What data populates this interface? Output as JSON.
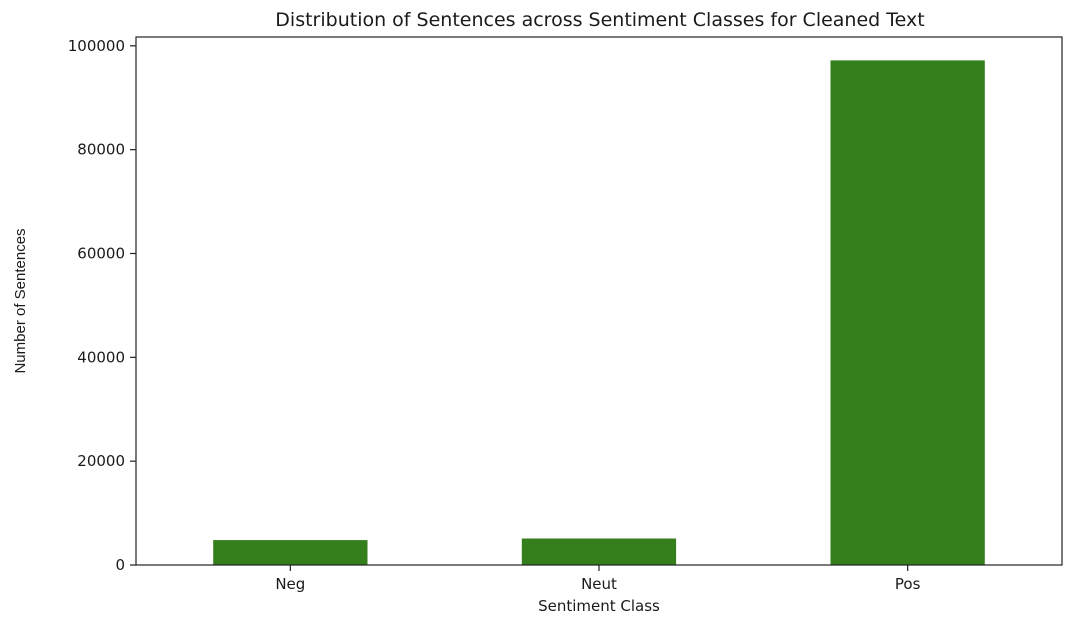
{
  "chart_data": {
    "type": "bar",
    "title": "Distribution of Sentences across Sentiment Classes for Cleaned Text",
    "xlabel": "Sentiment Class",
    "ylabel": "Number of Sentences",
    "categories": [
      "Neg",
      "Neut",
      "Pos"
    ],
    "values": [
      4800,
      5100,
      97200
    ],
    "ylim": [
      0,
      101700
    ],
    "yticks": [
      0,
      20000,
      40000,
      60000,
      80000,
      100000
    ],
    "ytick_labels": [
      "0",
      "20000",
      "40000",
      "60000",
      "80000",
      "100000"
    ],
    "bar_color": "#347e1c",
    "grid": false,
    "legend": "none"
  }
}
